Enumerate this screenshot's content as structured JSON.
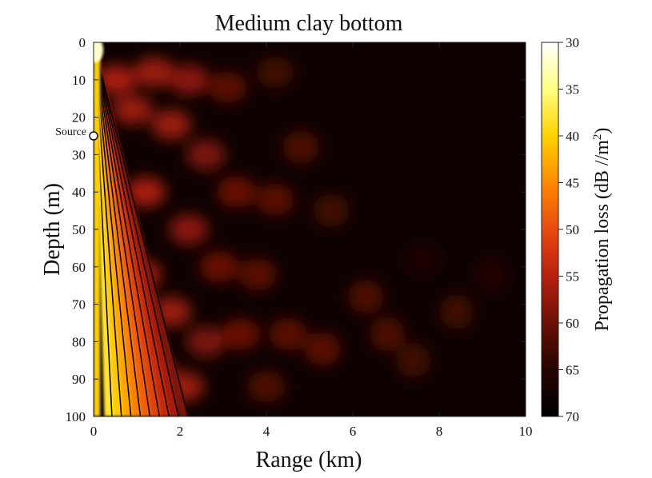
{
  "chart_data": {
    "type": "heatmap",
    "title": "Medium clay bottom",
    "xlabel": "Range (km)",
    "ylabel": "Depth (m)",
    "xlim": [
      0,
      10
    ],
    "ylim": [
      0,
      100
    ],
    "y_inverted": true,
    "x_ticks": [
      0,
      2,
      4,
      6,
      8,
      10
    ],
    "y_ticks": [
      0,
      10,
      20,
      30,
      40,
      50,
      60,
      70,
      80,
      90,
      100
    ],
    "source": {
      "label": "Source",
      "range_km": 0,
      "depth_m": 25
    },
    "colorbar": {
      "label_main": "Propagation loss (dB //m",
      "label_sup": "2",
      "label_tail": ")",
      "range": [
        30,
        70
      ],
      "ticks": [
        30,
        35,
        40,
        45,
        50,
        55,
        60,
        65,
        70
      ],
      "scale_colors": [
        "#ffffff",
        "#ffff80",
        "#ffd200",
        "#ff8a00",
        "#e84a10",
        "#b8200e",
        "#6a1006",
        "#240402",
        "#000000"
      ]
    },
    "field_description_values": {
      "near_source_loss_db": 30,
      "far_field_loss_db": 70,
      "beam_lobes_db": 57,
      "background_db": 70
    },
    "patches": [
      {
        "range_km": 0.5,
        "depth_m": 10,
        "loss_db": 56
      },
      {
        "range_km": 0.9,
        "depth_m": 18,
        "loss_db": 57
      },
      {
        "range_km": 1.4,
        "depth_m": 8,
        "loss_db": 57
      },
      {
        "range_km": 1.8,
        "depth_m": 22,
        "loss_db": 57
      },
      {
        "range_km": 2.2,
        "depth_m": 10,
        "loss_db": 58
      },
      {
        "range_km": 2.6,
        "depth_m": 30,
        "loss_db": 59
      },
      {
        "range_km": 3.1,
        "depth_m": 12,
        "loss_db": 61
      },
      {
        "range_km": 3.3,
        "depth_m": 40,
        "loss_db": 60
      },
      {
        "range_km": 4.2,
        "depth_m": 8,
        "loss_db": 63
      },
      {
        "range_km": 4.8,
        "depth_m": 28,
        "loss_db": 62
      },
      {
        "range_km": 4.2,
        "depth_m": 42,
        "loss_db": 61
      },
      {
        "range_km": 5.5,
        "depth_m": 45,
        "loss_db": 63
      },
      {
        "range_km": 1.2,
        "depth_m": 40,
        "loss_db": 56
      },
      {
        "range_km": 2.2,
        "depth_m": 50,
        "loss_db": 58
      },
      {
        "range_km": 2.9,
        "depth_m": 60,
        "loss_db": 60
      },
      {
        "range_km": 3.8,
        "depth_m": 62,
        "loss_db": 61
      },
      {
        "range_km": 1.1,
        "depth_m": 62,
        "loss_db": 56
      },
      {
        "range_km": 1.8,
        "depth_m": 72,
        "loss_db": 57
      },
      {
        "range_km": 2.6,
        "depth_m": 80,
        "loss_db": 59
      },
      {
        "range_km": 3.4,
        "depth_m": 78,
        "loss_db": 60
      },
      {
        "range_km": 4.5,
        "depth_m": 78,
        "loss_db": 61
      },
      {
        "range_km": 5.3,
        "depth_m": 82,
        "loss_db": 61
      },
      {
        "range_km": 6.3,
        "depth_m": 68,
        "loss_db": 62
      },
      {
        "range_km": 6.8,
        "depth_m": 78,
        "loss_db": 62
      },
      {
        "range_km": 7.4,
        "depth_m": 85,
        "loss_db": 63
      },
      {
        "range_km": 8.4,
        "depth_m": 72,
        "loss_db": 63
      },
      {
        "range_km": 9.2,
        "depth_m": 62,
        "loss_db": 65
      },
      {
        "range_km": 1.4,
        "depth_m": 88,
        "loss_db": 55
      },
      {
        "range_km": 2.1,
        "depth_m": 92,
        "loss_db": 57
      },
      {
        "range_km": 4.0,
        "depth_m": 92,
        "loss_db": 62
      },
      {
        "range_km": 7.6,
        "depth_m": 58,
        "loss_db": 66
      }
    ]
  }
}
